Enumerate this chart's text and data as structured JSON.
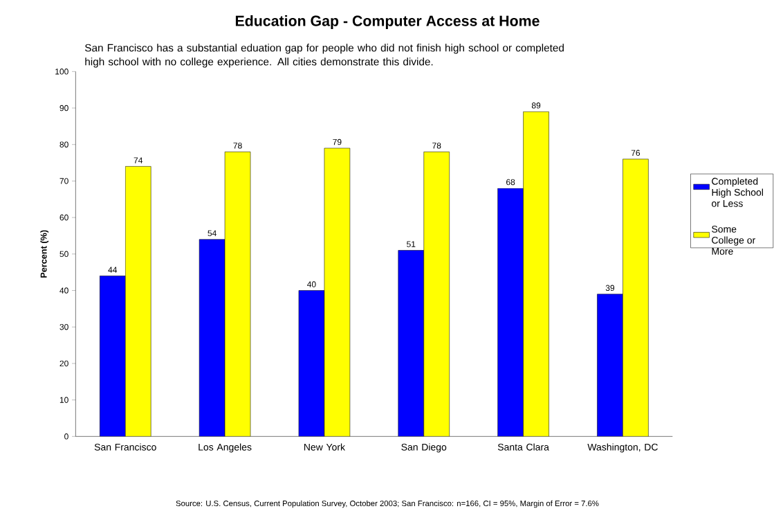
{
  "chart_data": {
    "type": "bar",
    "title": "Education Gap - Computer Access at Home",
    "subtitle": "San Francisco has a substantial eduation gap for people who did not finish high school or completed high school with no college experience. All cities demonstrate this divide.",
    "ylabel": "Percent (%)",
    "categories": [
      "San Francisco",
      "Los Angeles",
      "New York",
      "San Diego",
      "Santa Clara",
      "Washington, DC"
    ],
    "series": [
      {
        "name": "Completed High School or Less",
        "color": "#0000ff",
        "values": [
          44,
          54,
          40,
          51,
          68,
          39
        ]
      },
      {
        "name": "Some College or More",
        "color": "#ffff00",
        "values": [
          74,
          78,
          79,
          78,
          89,
          76
        ]
      }
    ],
    "ylim": [
      0,
      100
    ],
    "yticks": [
      0,
      10,
      20,
      30,
      40,
      50,
      60,
      70,
      80,
      90,
      100
    ],
    "data_labels": true,
    "legend": "right",
    "annotations": [
      "Source: U.S. Census, Current Population Survey, October 2003; San Francisco: n=166, CI = 95%, Margin of Error = 7.6%"
    ]
  }
}
